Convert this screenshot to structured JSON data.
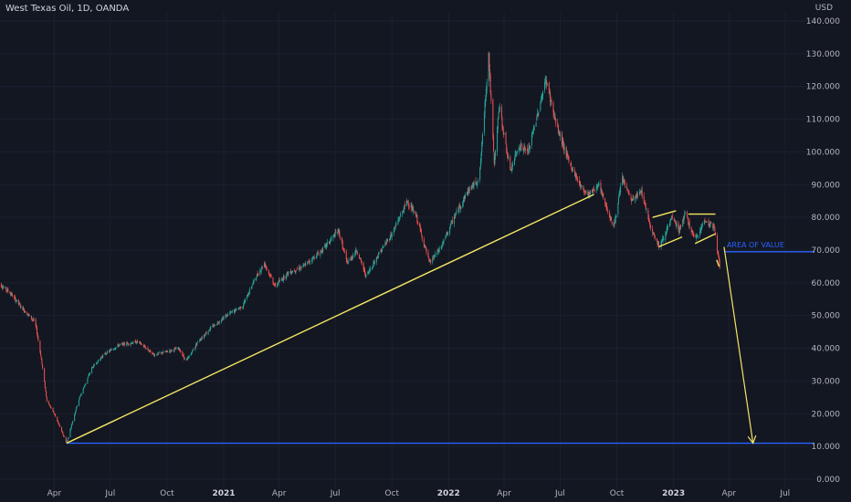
{
  "header": {
    "title": "West Texas Oil, 1D, OANDA",
    "currency": "USD"
  },
  "colors": {
    "background": "#131722",
    "up": "#26a69a",
    "down": "#ef5350",
    "trendline": "#f5e663",
    "level": "#2962ff"
  },
  "chart_data": {
    "type": "candlestick",
    "y_axis": {
      "min": 0,
      "max": 140,
      "ticks": [
        "0.000",
        "10.000",
        "20.000",
        "30.000",
        "40.000",
        "50.000",
        "60.000",
        "70.000",
        "80.000",
        "90.000",
        "100.000",
        "110.000",
        "120.000",
        "130.000",
        "140.000"
      ]
    },
    "x_axis": {
      "range": [
        "2020-01-01",
        "2023-07-31"
      ],
      "ticks": [
        {
          "label": "Apr",
          "date": "2020-04-01",
          "bold": false
        },
        {
          "label": "Jul",
          "date": "2020-07-01",
          "bold": false
        },
        {
          "label": "Oct",
          "date": "2020-10-01",
          "bold": false
        },
        {
          "label": "2021",
          "date": "2021-01-01",
          "bold": true
        },
        {
          "label": "Apr",
          "date": "2021-04-01",
          "bold": false
        },
        {
          "label": "Jul",
          "date": "2021-07-01",
          "bold": false
        },
        {
          "label": "Oct",
          "date": "2021-10-01",
          "bold": false
        },
        {
          "label": "2022",
          "date": "2022-01-01",
          "bold": true
        },
        {
          "label": "Apr",
          "date": "2022-04-01",
          "bold": false
        },
        {
          "label": "Jul",
          "date": "2022-07-01",
          "bold": false
        },
        {
          "label": "Oct",
          "date": "2022-10-01",
          "bold": false
        },
        {
          "label": "2023",
          "date": "2023-01-01",
          "bold": true
        },
        {
          "label": "Apr",
          "date": "2023-04-01",
          "bold": false
        },
        {
          "label": "Jul",
          "date": "2023-07-01",
          "bold": false
        }
      ]
    },
    "price_path": [
      [
        "2020-01-01",
        60
      ],
      [
        "2020-01-20",
        57
      ],
      [
        "2020-02-10",
        52
      ],
      [
        "2020-03-01",
        48
      ],
      [
        "2020-03-10",
        38
      ],
      [
        "2020-03-20",
        24
      ],
      [
        "2020-04-01",
        20
      ],
      [
        "2020-04-21",
        11
      ],
      [
        "2020-05-10",
        24
      ],
      [
        "2020-06-01",
        34
      ],
      [
        "2020-06-20",
        38
      ],
      [
        "2020-07-15",
        41
      ],
      [
        "2020-08-15",
        42
      ],
      [
        "2020-09-10",
        38
      ],
      [
        "2020-10-01",
        39
      ],
      [
        "2020-10-20",
        40
      ],
      [
        "2020-11-01",
        36
      ],
      [
        "2020-11-20",
        42
      ],
      [
        "2020-12-10",
        46
      ],
      [
        "2021-01-05",
        50
      ],
      [
        "2021-02-01",
        53
      ],
      [
        "2021-02-20",
        61
      ],
      [
        "2021-03-08",
        66
      ],
      [
        "2021-03-25",
        59
      ],
      [
        "2021-04-15",
        63
      ],
      [
        "2021-05-10",
        65
      ],
      [
        "2021-06-10",
        70
      ],
      [
        "2021-07-06",
        76
      ],
      [
        "2021-07-20",
        66
      ],
      [
        "2021-08-05",
        70
      ],
      [
        "2021-08-20",
        62
      ],
      [
        "2021-09-10",
        69
      ],
      [
        "2021-10-01",
        75
      ],
      [
        "2021-10-26",
        85
      ],
      [
        "2021-11-10",
        80
      ],
      [
        "2021-12-01",
        66
      ],
      [
        "2021-12-20",
        71
      ],
      [
        "2022-01-10",
        80
      ],
      [
        "2022-02-01",
        88
      ],
      [
        "2022-02-20",
        92
      ],
      [
        "2022-03-07",
        130
      ],
      [
        "2022-03-16",
        96
      ],
      [
        "2022-03-24",
        114
      ],
      [
        "2022-04-11",
        94
      ],
      [
        "2022-04-25",
        102
      ],
      [
        "2022-05-10",
        100
      ],
      [
        "2022-06-08",
        122
      ],
      [
        "2022-06-25",
        108
      ],
      [
        "2022-07-15",
        97
      ],
      [
        "2022-08-05",
        89
      ],
      [
        "2022-08-16",
        87
      ],
      [
        "2022-09-01",
        90
      ],
      [
        "2022-09-26",
        77
      ],
      [
        "2022-10-10",
        92
      ],
      [
        "2022-10-25",
        85
      ],
      [
        "2022-11-10",
        88
      ],
      [
        "2022-11-25",
        77
      ],
      [
        "2022-12-09",
        71
      ],
      [
        "2022-12-30",
        80
      ],
      [
        "2023-01-10",
        76
      ],
      [
        "2023-01-20",
        81
      ],
      [
        "2023-02-05",
        73
      ],
      [
        "2023-02-20",
        79
      ],
      [
        "2023-03-08",
        77
      ],
      [
        "2023-03-17",
        65
      ]
    ],
    "trendlines": [
      {
        "from": [
          "2020-04-21",
          11
        ],
        "to": [
          "2022-08-25",
          87
        ]
      },
      {
        "from": [
          "2022-11-28",
          80
        ],
        "to": [
          "2023-01-05",
          82
        ]
      },
      {
        "from": [
          "2022-12-08",
          71
        ],
        "to": [
          "2023-01-15",
          74
        ]
      },
      {
        "from": [
          "2023-01-25",
          81
        ],
        "to": [
          "2023-03-10",
          81
        ]
      },
      {
        "from": [
          "2023-02-05",
          72
        ],
        "to": [
          "2023-03-10",
          75
        ]
      },
      {
        "from": [
          "2023-03-16",
          65
        ],
        "to": [
          "2023-03-12",
          67
        ]
      }
    ],
    "projection_arrow": {
      "from": [
        "2023-03-24",
        71
      ],
      "to": [
        "2023-05-10",
        11
      ]
    },
    "horizontal_levels": [
      {
        "value": 11,
        "from": "2020-04-21",
        "label": ""
      },
      {
        "value": 69.5,
        "from": "2023-03-24",
        "label": "AREA OF VALUE"
      }
    ]
  }
}
